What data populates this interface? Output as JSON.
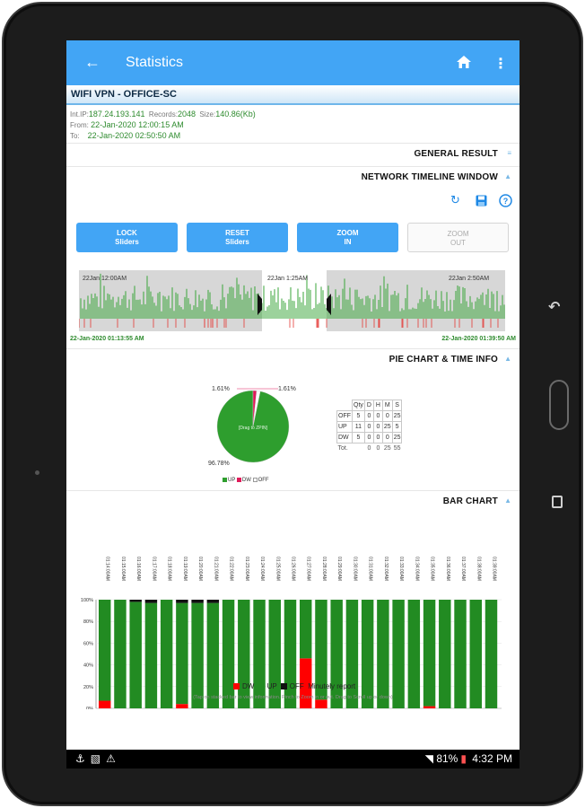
{
  "header": {
    "title": "Statistics"
  },
  "connection": {
    "name": "WIFI VPN - OFFICE-SC",
    "ip_label": "Int.IP:",
    "ip": "187.24.193.141",
    "records_label": "Records:",
    "records": "2048",
    "size_label": "Size:",
    "size": "140.86(Kb)",
    "from_label": "From:",
    "from": "22-Jan-2020 12:00:15 AM",
    "to_label": "To:",
    "to": "22-Jan-2020 02:50:50 AM"
  },
  "sections": {
    "general": "GENERAL RESULT",
    "timeline": "NETWORK TIMELINE WINDOW",
    "pie": "PIE CHART & TIME INFO",
    "bar": "BAR CHART"
  },
  "buttons": {
    "lock": [
      "LOCK",
      "Sliders"
    ],
    "reset": [
      "RESET",
      "Sliders"
    ],
    "zoom_in": [
      "ZOOM",
      "IN"
    ],
    "zoom_out": [
      "ZOOM",
      "OUT"
    ]
  },
  "timeline": {
    "left_time": "22Jan 12:00AM",
    "mid_time": "22Jan 1:25AM",
    "right_time": "22Jan 2:50AM",
    "start": "22-Jan-2020 01:13:55 AM",
    "end": "22-Jan-2020 01:39:50 AM"
  },
  "pie": {
    "center_label": "[Drag to ZPIN]",
    "up_pct": "96.78%",
    "dw_pct": "1.61%",
    "off_pct": "1.61%",
    "legend": [
      "UP",
      "DW",
      "OFF"
    ],
    "colors": {
      "up": "#2e9e2e",
      "dw": "#e01b5a",
      "off": "#ffffff"
    },
    "values": [
      96.78,
      1.61,
      1.61
    ]
  },
  "stats_table": {
    "headers": [
      "Qty",
      "D",
      "H",
      "M",
      "S"
    ],
    "rows": [
      {
        "name": "OFF",
        "values": [
          "5",
          "0",
          "0",
          "0",
          "25"
        ]
      },
      {
        "name": "UP",
        "values": [
          "11",
          "0",
          "0",
          "25",
          "5"
        ]
      },
      {
        "name": "DW",
        "values": [
          "5",
          "0",
          "0",
          "0",
          "25"
        ]
      }
    ],
    "total_label": "Tot.",
    "total": [
      "0",
      "0",
      "25",
      "55"
    ]
  },
  "chart_data": {
    "type": "bar",
    "stacked": true,
    "categories": [
      "01:14:00AM",
      "01:15:00AM",
      "01:16:00AM",
      "01:17:00AM",
      "01:18:00AM",
      "01:19:00AM",
      "01:20:00AM",
      "01:21:00AM",
      "01:22:00AM",
      "01:23:00AM",
      "01:24:00AM",
      "01:25:00AM",
      "01:26:00AM",
      "01:27:00AM",
      "01:28:00AM",
      "01:29:00AM",
      "01:30:00AM",
      "01:31:00AM",
      "01:32:00AM",
      "01:33:00AM",
      "01:34:00AM",
      "01:35:00AM",
      "01:36:00AM",
      "01:37:00AM",
      "01:38:00AM",
      "01:39:00AM"
    ],
    "series": [
      {
        "name": "DW",
        "color": "#ff0000",
        "values": [
          7,
          0,
          0,
          0,
          0,
          4,
          0,
          0,
          0,
          0,
          0,
          0,
          0,
          46,
          8,
          0,
          0,
          0,
          0,
          0,
          0,
          2,
          0,
          0,
          0,
          0
        ]
      },
      {
        "name": "UP",
        "color": "#228b22",
        "values": [
          93,
          100,
          98,
          97,
          100,
          93,
          97,
          97,
          100,
          100,
          100,
          100,
          100,
          54,
          92,
          100,
          100,
          100,
          100,
          100,
          100,
          98,
          100,
          100,
          100,
          100
        ]
      },
      {
        "name": "OFF",
        "color": "#111111",
        "values": [
          0,
          0,
          2,
          3,
          0,
          3,
          3,
          3,
          0,
          0,
          0,
          0,
          0,
          0,
          0,
          0,
          0,
          0,
          0,
          0,
          0,
          0,
          0,
          0,
          0,
          0
        ]
      }
    ],
    "yticks": [
      "0%",
      "20%",
      "40%",
      "60%",
      "80%",
      "100%"
    ],
    "ylim": [
      0,
      100
    ],
    "legend_suffix": "Minutely report"
  },
  "hint": "(Tap on stacked bar to view information. Pinch to Zoom in or out. Drag to Scroll up or down)",
  "status": {
    "battery": "81%",
    "time": "4:32 PM"
  }
}
